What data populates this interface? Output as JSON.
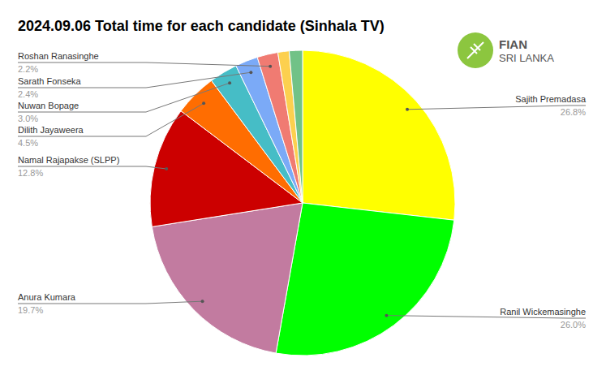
{
  "chart_data": {
    "type": "pie",
    "title": "2024.09.06 Total time for each candidate (Sinhala TV)",
    "annotations": [
      "FIAN",
      "SRI LANKA"
    ],
    "categories": [
      "Sajith Premadasa",
      "Ranil Wickemasinghe",
      "Anura Kumara",
      "Namal Rajapakse (SLPP)",
      "Dilith Jayaweera",
      "Nuwan Bopage",
      "Sarath Fonseka",
      "Roshan Ranasinghe",
      null,
      null
    ],
    "values": [
      26.8,
      26.0,
      19.7,
      12.8,
      4.5,
      3.0,
      2.4,
      2.2,
      1.2,
      1.4
    ],
    "value_labels": [
      "26.8%",
      "26.0%",
      "19.7%",
      "12.8%",
      "4.5%",
      "3.0%",
      "2.4%",
      "2.2%",
      null,
      null
    ],
    "colors": [
      "#ffff00",
      "#00ff00",
      "#c27ba0",
      "#cc0000",
      "#ff6d01",
      "#46bdc6",
      "#7baaf7",
      "#f07b72",
      "#fcd04f",
      "#71c287"
    ],
    "data_labels": true
  }
}
